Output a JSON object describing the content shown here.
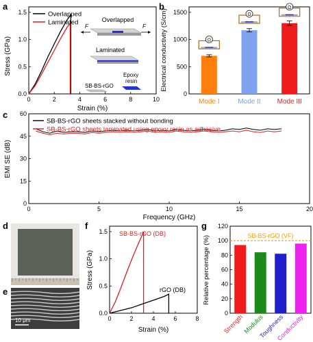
{
  "colors": {
    "black": "#000000",
    "red": "#e21b1b",
    "orange": "#ff7f0e",
    "lightblue": "#7fa2ee",
    "redbar": "#ee1c1c",
    "green": "#1b8a1b",
    "blue": "#1f1fcc",
    "magenta": "#ee22ee",
    "dashed": "#ff9900",
    "epoxy": "#2233dd"
  },
  "panel_a": {
    "letter": "a",
    "schematic": {
      "overlapped": "Overlapped",
      "laminated": "Laminated",
      "force": "F",
      "sheet": "SB-BS-rGO",
      "epoxy": "Epoxy resin"
    },
    "chart_data": {
      "type": "line",
      "xlabel": "Strain (%)",
      "ylabel": "Stress (GPa)",
      "xlim": [
        0,
        10
      ],
      "ylim": [
        0,
        1.6
      ],
      "xticks": [
        0,
        2,
        4,
        6,
        8,
        10
      ],
      "yticks": [
        0.0,
        0.5,
        1.0,
        1.5
      ],
      "series": [
        {
          "name": "Overlapped",
          "color": "#000000",
          "x": [
            0,
            0.5,
            1.0,
            1.5,
            2.0,
            2.5,
            3.0,
            3.3,
            3.3
          ],
          "y": [
            0,
            0.18,
            0.42,
            0.68,
            0.92,
            1.15,
            1.36,
            1.45,
            0.0
          ]
        },
        {
          "name": "Laminated",
          "color": "#e21b1b",
          "x": [
            0,
            0.5,
            1.0,
            1.5,
            2.0,
            2.5,
            3.0,
            3.25,
            3.25
          ],
          "y": [
            0,
            0.15,
            0.36,
            0.58,
            0.8,
            1.02,
            1.22,
            1.3,
            0.0
          ]
        }
      ],
      "grid": false,
      "legend": "top-left"
    }
  },
  "panel_b": {
    "letter": "b",
    "chart_data": {
      "type": "bar",
      "categories": [
        "Mode I",
        "Mode II",
        "Mode III"
      ],
      "values": [
        700,
        1170,
        1300
      ],
      "errors": [
        20,
        30,
        40
      ],
      "colors": [
        "#ff7f0e",
        "#7fa2ee",
        "#ee1c1c"
      ],
      "xlabel": "",
      "ylabel": "Electrical conductivity (S/cm)",
      "ylim": [
        0,
        1600
      ],
      "yticks": [
        0,
        500,
        1000,
        1500
      ],
      "grid": false
    },
    "ohm_symbol": "Ω"
  },
  "panel_c": {
    "letter": "c",
    "chart_data": {
      "type": "line",
      "xlabel": "Frequency (GHz)",
      "ylabel": "EMI SE (dB)",
      "xlim": [
        0,
        20
      ],
      "ylim": [
        0,
        60
      ],
      "xticks": [
        0,
        5,
        10,
        15,
        20
      ],
      "yticks": [
        0,
        15,
        30,
        45,
        60
      ],
      "series": [
        {
          "name": "SB-BS-rGO sheets stacked without bonding",
          "color": "#000000",
          "x": [
            0.5,
            1,
            1.5,
            2,
            2.5,
            3,
            3.5,
            4,
            4.5,
            5,
            5.5,
            6,
            6.5,
            7,
            7.5,
            8,
            8.5,
            9,
            9.5,
            10,
            10.5,
            11,
            11.5,
            12,
            12.5,
            13,
            13.5,
            14,
            14.5,
            15,
            15.5,
            16,
            16.5,
            17,
            17.5,
            18
          ],
          "y": [
            50,
            48,
            47,
            48.5,
            47.5,
            48,
            48,
            47.5,
            48.5,
            48,
            48.5,
            49,
            48.5,
            49,
            48.5,
            49,
            49.5,
            48.5,
            49,
            48.5,
            49.5,
            49,
            48.5,
            49,
            49.5,
            49,
            48.5,
            49,
            50,
            49.5,
            50.5,
            49.5,
            49,
            50,
            49.5,
            50
          ]
        },
        {
          "name": "SB-BS-rGO sheets laminated using epoxy resin as adhesive",
          "color": "#e21b1b",
          "x": [
            0.5,
            1,
            1.5,
            2,
            2.5,
            3,
            3.5,
            4,
            4.5,
            5,
            5.5,
            6,
            6.5,
            7,
            7.5,
            8,
            8.5,
            9,
            9.5,
            10,
            10.5,
            11,
            11.5,
            12,
            12.5,
            13,
            13.5,
            14,
            14.5,
            15,
            15.5,
            16,
            16.5,
            17,
            17.5,
            18
          ],
          "y": [
            48.5,
            47,
            46,
            47,
            46.5,
            47,
            47,
            46.5,
            47.5,
            47,
            47.5,
            48,
            47.5,
            48,
            47.5,
            48,
            48.5,
            47.5,
            48,
            47.5,
            48.5,
            48,
            47.5,
            48,
            48.5,
            48,
            47.5,
            48,
            48.5,
            48,
            49,
            48,
            47.5,
            48.5,
            48,
            48.5
          ]
        }
      ],
      "grid": false,
      "legend": "top-left"
    }
  },
  "panel_d": {
    "letter": "d"
  },
  "panel_e": {
    "letter": "e",
    "scale_bar": "10 μm"
  },
  "panel_f": {
    "letter": "f",
    "chart_data": {
      "type": "line",
      "xlabel": "Strain (%)",
      "ylabel": "Stress (GPa)",
      "xlim": [
        0,
        8
      ],
      "ylim": [
        0,
        1.6
      ],
      "xticks": [
        0,
        2,
        4,
        6,
        8
      ],
      "yticks": [
        0.0,
        0.5,
        1.0,
        1.5
      ],
      "series": [
        {
          "name": "SB-BS-rGO (DB)",
          "color": "#e21b1b",
          "x": [
            0,
            0.5,
            1.0,
            1.5,
            2.0,
            2.5,
            3.0,
            3.1,
            3.1
          ],
          "y": [
            0,
            0.2,
            0.45,
            0.72,
            0.98,
            1.22,
            1.45,
            1.5,
            0.0
          ]
        },
        {
          "name": "rGO (DB)",
          "color": "#000000",
          "x": [
            0,
            1,
            2,
            3,
            4,
            5,
            5.4,
            5.4
          ],
          "y": [
            0,
            0.05,
            0.1,
            0.17,
            0.24,
            0.31,
            0.35,
            0.0
          ]
        }
      ],
      "grid": false
    }
  },
  "panel_g": {
    "letter": "g",
    "chart_data": {
      "type": "bar",
      "categories": [
        "Strength",
        "Modulus",
        "Toughness",
        "Conductivity"
      ],
      "values": [
        94,
        84,
        82,
        96
      ],
      "colors": [
        "#ee1c1c",
        "#1b8a1b",
        "#1f1fcc",
        "#ee22ee"
      ],
      "xlabel": "",
      "ylabel": "Relative percentage (%)",
      "ylim": [
        0,
        120
      ],
      "yticks": [
        0,
        20,
        40,
        60,
        80,
        100,
        120
      ],
      "reference": {
        "label": "SB-BS-rGO (VF)",
        "value": 100
      },
      "grid": false
    }
  }
}
